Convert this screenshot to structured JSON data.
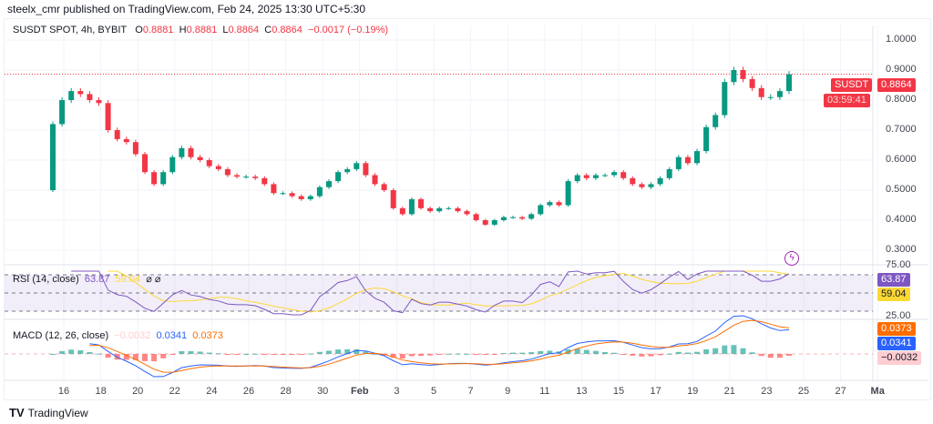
{
  "publisher_line": "steelx_cmr published on TradingView.com, Feb 24, 2025 13:30 UTC+5:30",
  "symbol_line": {
    "symbol": "SUSDT SPOT, 4h, BYBIT",
    "o_label": "O",
    "o": "0.8881",
    "h_label": "H",
    "h": "0.8881",
    "l_label": "L",
    "l": "0.8864",
    "c_label": "C",
    "c": "0.8864",
    "change": "−0.0017 (−0.19%)"
  },
  "price_tag": {
    "symbol": "SUSDT",
    "price": "0.8864",
    "countdown": "03:59:41"
  },
  "rsi": {
    "label": "RSI (14, close)",
    "value": "63.87",
    "ma": "59.04",
    "icons": [
      "eye-off-icon",
      "eye-off-icon"
    ],
    "axis": [
      "75.00",
      "25.00"
    ]
  },
  "macd": {
    "label": "MACD (12, 26, close)",
    "hist": "−0.0032",
    "macd": "0.0341",
    "signal": "0.0373"
  },
  "footer": {
    "brand": "TradingView"
  },
  "colors": {
    "up": "#089981",
    "down": "#f23645",
    "rsi": "#7e57c2",
    "rsi_ma": "#fdd835",
    "macd": "#2962ff",
    "signal": "#ff6d00",
    "hist_up": "#26a69a",
    "hist_down": "#ff5252"
  },
  "chart_data": {
    "type": "candlestick",
    "interval": "4h (sampled ~12h)",
    "start": "2025-01-15 12:00",
    "step_hours": 12,
    "first_open": 0.5,
    "close": [
      0.72,
      0.8,
      0.83,
      0.82,
      0.8,
      0.79,
      0.7,
      0.67,
      0.66,
      0.62,
      0.56,
      0.52,
      0.56,
      0.61,
      0.64,
      0.61,
      0.6,
      0.58,
      0.57,
      0.55,
      0.545,
      0.545,
      0.54,
      0.52,
      0.49,
      0.49,
      0.48,
      0.47,
      0.48,
      0.51,
      0.53,
      0.56,
      0.57,
      0.59,
      0.55,
      0.52,
      0.5,
      0.44,
      0.42,
      0.47,
      0.44,
      0.43,
      0.44,
      0.44,
      0.43,
      0.42,
      0.4,
      0.385,
      0.4,
      0.41,
      0.41,
      0.405,
      0.42,
      0.45,
      0.46,
      0.45,
      0.53,
      0.55,
      0.54,
      0.55,
      0.55,
      0.56,
      0.54,
      0.52,
      0.51,
      0.52,
      0.54,
      0.57,
      0.61,
      0.59,
      0.63,
      0.71,
      0.75,
      0.86,
      0.9,
      0.87,
      0.84,
      0.81,
      0.81,
      0.83,
      0.886
    ],
    "price_axis": [
      "1.0000",
      "0.9000",
      "0.8000",
      "0.7000",
      "0.6000",
      "0.5000",
      "0.4000",
      "0.3000"
    ],
    "ylim": [
      0.27,
      1.03
    ],
    "time_axis": [
      "16",
      "18",
      "20",
      "22",
      "24",
      "26",
      "28",
      "30",
      "Feb",
      "3",
      "5",
      "7",
      "9",
      "11",
      "13",
      "15",
      "17",
      "19",
      "21",
      "23",
      "25",
      "27",
      "Ma"
    ],
    "last_price": 0.8864
  }
}
